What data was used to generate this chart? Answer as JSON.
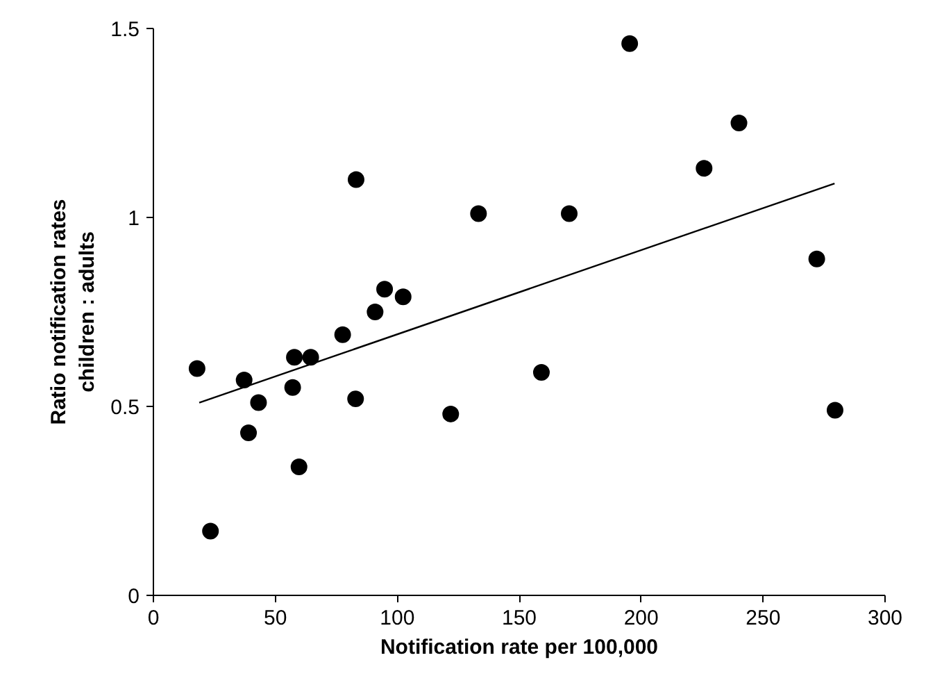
{
  "chart_data": {
    "type": "scatter",
    "xlabel": "Notification rate per 100,000",
    "ylabel": "Ratio notification rates\nchildren : adults",
    "xlim": [
      0,
      300
    ],
    "ylim": [
      0,
      1.5
    ],
    "xticks": [
      0,
      50,
      100,
      150,
      200,
      250,
      300
    ],
    "yticks": [
      0,
      0.5,
      1,
      1.5
    ],
    "grid": false,
    "series": [
      {
        "marker": "circle",
        "color": "#000000",
        "x": [
          17.9,
          23.4,
          37.2,
          39.0,
          43.1,
          57.1,
          57.8,
          59.7,
          64.5,
          77.6,
          83.1,
          82.9,
          90.9,
          94.8,
          102.4,
          121.9,
          133.3,
          159.1,
          170.5,
          195.3,
          225.8,
          240.1,
          272.0,
          279.5
        ],
        "values": [
          0.6,
          0.17,
          0.57,
          0.43,
          0.51,
          0.55,
          0.63,
          0.34,
          0.63,
          0.69,
          1.1,
          0.52,
          0.75,
          0.81,
          0.79,
          0.48,
          1.01,
          0.59,
          1.01,
          1.46,
          1.13,
          1.25,
          0.89,
          0.49
        ]
      },
      {
        "type": "line",
        "color": "#000000",
        "line_style": "solid",
        "x": [
          18.8,
          279.3
        ],
        "values": [
          0.51,
          1.09
        ]
      }
    ]
  }
}
